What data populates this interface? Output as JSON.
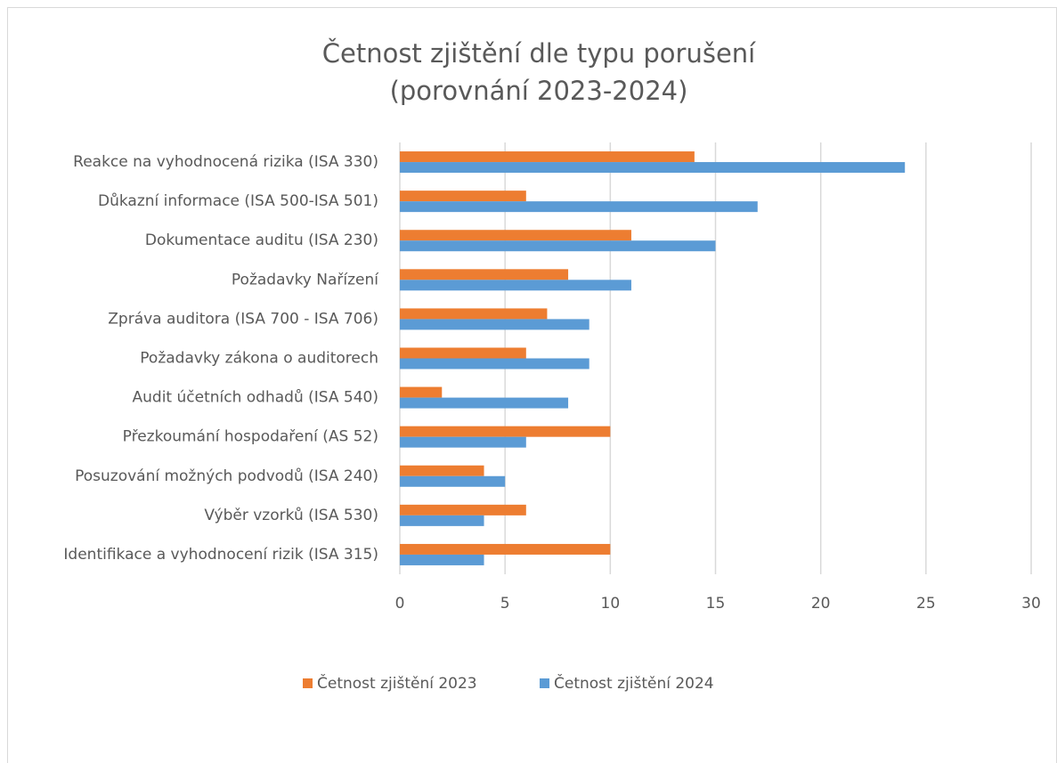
{
  "chart_data": {
    "type": "hbar",
    "title": [
      "Četnost zjištění dle typu porušení",
      "(porovnání 2023-2024)"
    ],
    "categories": [
      "Reakce na vyhodnocená rizika (ISA 330)",
      "Důkazní informace (ISA 500-ISA 501)",
      "Dokumentace auditu (ISA 230)",
      "Požadavky Nařízení",
      "Zpráva auditora (ISA 700 - ISA 706)",
      "Požadavky zákona o auditorech",
      "Audit účetních odhadů (ISA 540)",
      "Přezkoumání hospodaření (AS 52)",
      "Posuzování možných podvodů (ISA 240)",
      "Výběr vzorků (ISA 530)",
      "Identifikace a vyhodnocení rizik (ISA 315)"
    ],
    "series": [
      {
        "name": "Četnost zjištění 2023",
        "color": "#ed7d31",
        "values": [
          14,
          6,
          11,
          8,
          7,
          6,
          2,
          10,
          4,
          6,
          10
        ]
      },
      {
        "name": "Četnost zjištění 2024",
        "color": "#5b9bd5",
        "values": [
          24,
          17,
          15,
          11,
          9,
          9,
          8,
          6,
          5,
          4,
          4
        ]
      }
    ],
    "xlim": [
      0,
      30
    ],
    "xticks": [
      0,
      5,
      10,
      15,
      20,
      25,
      30
    ],
    "grid": true,
    "legend": "bottom"
  }
}
